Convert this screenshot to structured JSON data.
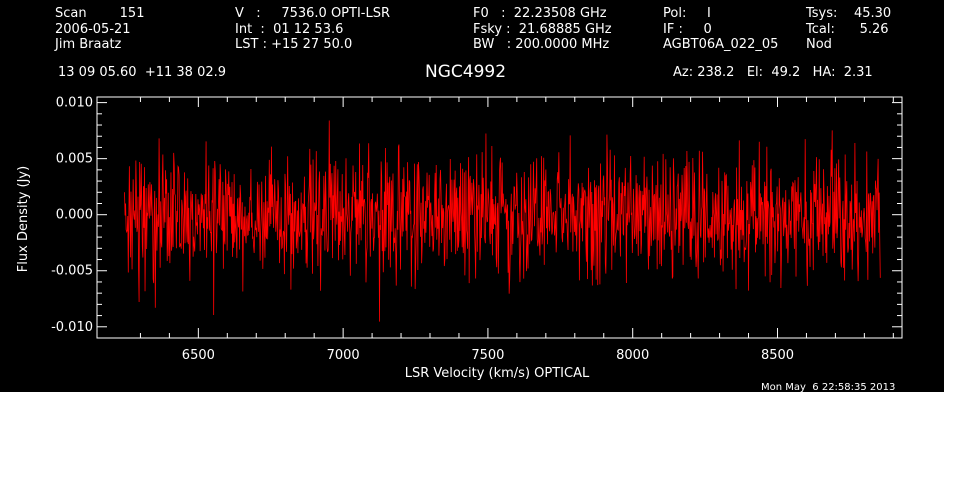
{
  "header": {
    "col1": [
      "Scan        151",
      "2006-05-21",
      "Jim Braatz"
    ],
    "col2": [
      "V   :     7536.0 OPTI-LSR",
      "Int  :  01 12 53.6",
      "LST : +15 27 50.0"
    ],
    "col3": [
      "F0   :  22.23508 GHz",
      "Fsky :  21.68885 GHz",
      "BW   : 200.0000 MHz"
    ],
    "col4": [
      "Pol:     I",
      "IF :     0",
      "AGBT06A_022_05"
    ],
    "col5": [
      "Tsys:    45.30",
      "Tcal:      5.26",
      "Nod"
    ],
    "coords": "13 09 05.60  +11 38 02.9",
    "source": "NGC4992",
    "azelha": "Az: 238.2   El:  49.2   HA:  2.31",
    "timestamp": "Mon May  6 22:58:35 2013"
  },
  "colors": {
    "background": "#000000",
    "series": "#ff0000",
    "text": "#ffffff"
  },
  "chart_data": {
    "type": "line",
    "xlabel": "LSR Velocity (km/s) OPTICAL",
    "ylabel": "Flux Density (Jy)",
    "xlim": [
      6150,
      8930
    ],
    "ylim": [
      -0.011,
      0.0105
    ],
    "x_range_data": [
      6245,
      8855
    ],
    "x_ticks": [
      6500,
      7000,
      7500,
      8000,
      8500
    ],
    "x_tick_labels": [
      "6500",
      "7000",
      "7500",
      "8000",
      "8500"
    ],
    "y_ticks": [
      -0.01,
      -0.005,
      0.0,
      0.005,
      0.01
    ],
    "y_tick_labels": [
      "-0.010",
      "-0.005",
      "0.000",
      "0.005",
      "0.010"
    ],
    "noise_rms": 0.0028,
    "series": [
      {
        "points": 1400
      }
    ],
    "grid": false
  }
}
